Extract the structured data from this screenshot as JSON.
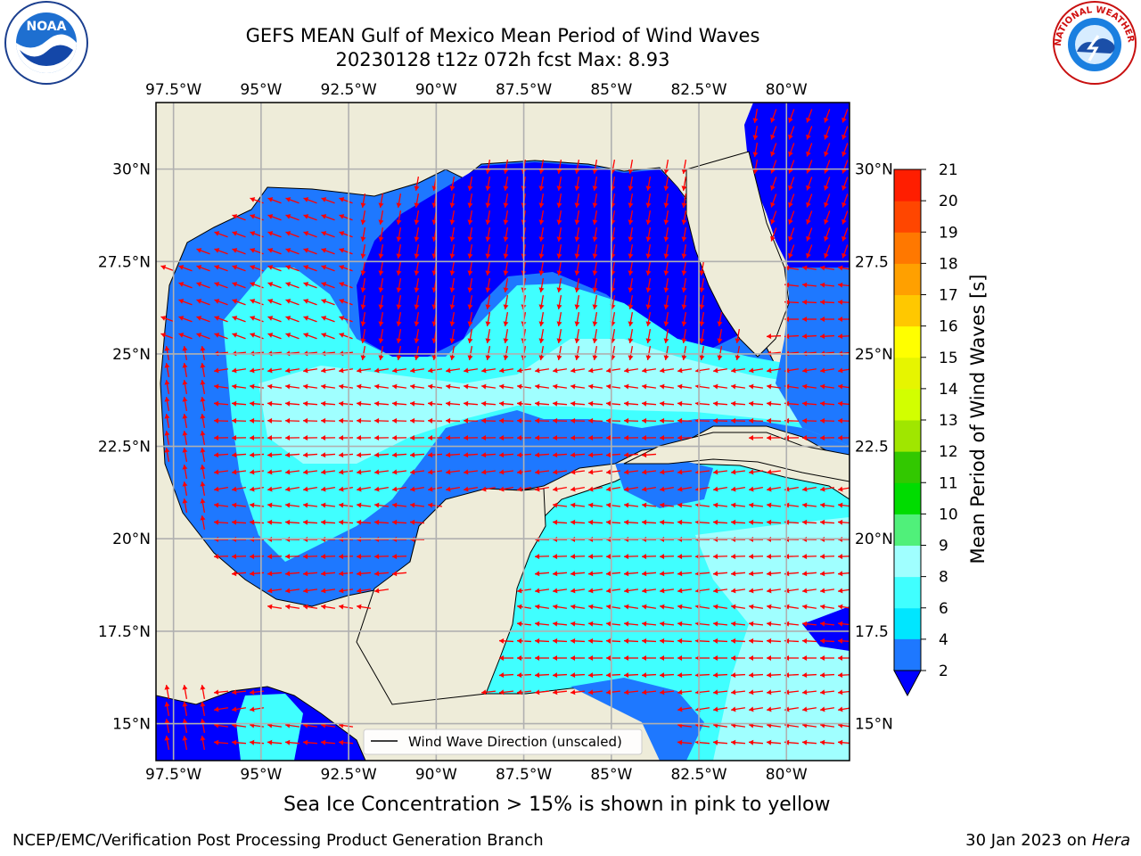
{
  "header": {
    "title_line1": "GEFS MEAN Gulf of Mexico Mean Period of Wind Waves",
    "title_line2": "20230128 t12z 072h fcst   Max: 8.93"
  },
  "logos": {
    "noaa_text": "NOAA",
    "noaa_ring_text": "NATIONAL OCEANIC AND ATMOSPHERIC ADMINISTRATION · U.S. DEPARTMENT OF COMMERCE",
    "nws_ring_text": "NATIONAL WEATHER SERVICE"
  },
  "map": {
    "lon_ticks": [
      "97.5°W",
      "95°W",
      "92.5°W",
      "90°W",
      "87.5°W",
      "85°W",
      "82.5°W",
      "80°W"
    ],
    "lat_ticks_left": [
      "30°N",
      "27.5°N",
      "25°N",
      "22.5°N",
      "20°N",
      "17.5°N",
      "15°N"
    ],
    "lat_ticks_right": [
      "30°N",
      "27.5",
      "25°N",
      "22.5",
      "20°N",
      "17.5",
      "15°N"
    ],
    "lon_range": [
      -98,
      -78.2
    ],
    "lat_range": [
      14,
      31.8
    ],
    "land_color": "#eeecd9",
    "arrow_color": "#ff0000",
    "legend_label": "Wind Wave Direction (unscaled)"
  },
  "colorbar": {
    "label": "Mean Period of Wind Waves [s]",
    "ticks": [
      "2",
      "4",
      "6",
      "8",
      "9",
      "10",
      "11",
      "12",
      "13",
      "14",
      "15",
      "16",
      "17",
      "18",
      "19",
      "20",
      "21"
    ],
    "colors": [
      "#0000ff",
      "#1e78ff",
      "#00e6ff",
      "#40ffff",
      "#a0ffff",
      "#50f07a",
      "#00dc00",
      "#32c800",
      "#a0e600",
      "#d2ff00",
      "#e6f500",
      "#ffff00",
      "#ffc800",
      "#ffa000",
      "#ff7800",
      "#ff4600",
      "#ff1e00",
      "#ff0000"
    ],
    "extend_color": "#0000ff"
  },
  "footer": {
    "sea_ice_note": "Sea Ice Concentration > 15% is shown in pink to yellow",
    "branch": "NCEP/EMC/Verification Post Processing Product Generation Branch",
    "date": "30 Jan 2023 on",
    "machine": "Hera"
  }
}
